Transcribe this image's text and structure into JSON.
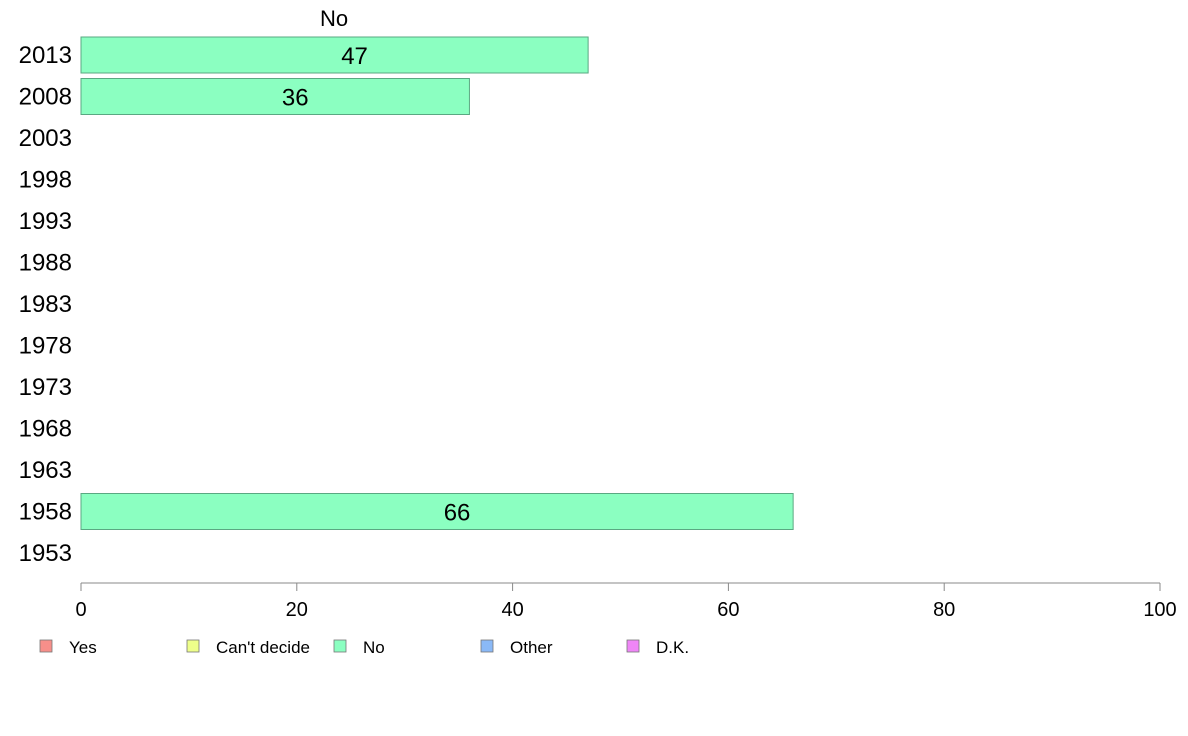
{
  "chart_data": {
    "type": "bar",
    "orientation": "horizontal",
    "title": "No",
    "categories": [
      "2013",
      "2008",
      "2003",
      "1998",
      "1993",
      "1988",
      "1983",
      "1978",
      "1973",
      "1968",
      "1963",
      "1958",
      "1953"
    ],
    "series": [
      {
        "name": "No",
        "color": "#8bffc1",
        "values": [
          47,
          36,
          null,
          null,
          null,
          null,
          null,
          null,
          null,
          null,
          null,
          66,
          null
        ],
        "labels": [
          "47",
          "36",
          "",
          "",
          "",
          "",
          "",
          "",
          "",
          "",
          "",
          "66",
          ""
        ]
      }
    ],
    "xlim": [
      0,
      100
    ],
    "xticks": [
      0,
      20,
      40,
      60,
      80,
      100
    ],
    "grid": false,
    "legend": {
      "placement": "bottom",
      "items": [
        {
          "label": "Yes",
          "color": "#f78f8a"
        },
        {
          "label": "Can't decide",
          "color": "#eeff8a"
        },
        {
          "label": "No",
          "color": "#8bffc1"
        },
        {
          "label": "Other",
          "color": "#8ab9f7"
        },
        {
          "label": "D.K.",
          "color": "#ef86f7"
        }
      ]
    }
  }
}
